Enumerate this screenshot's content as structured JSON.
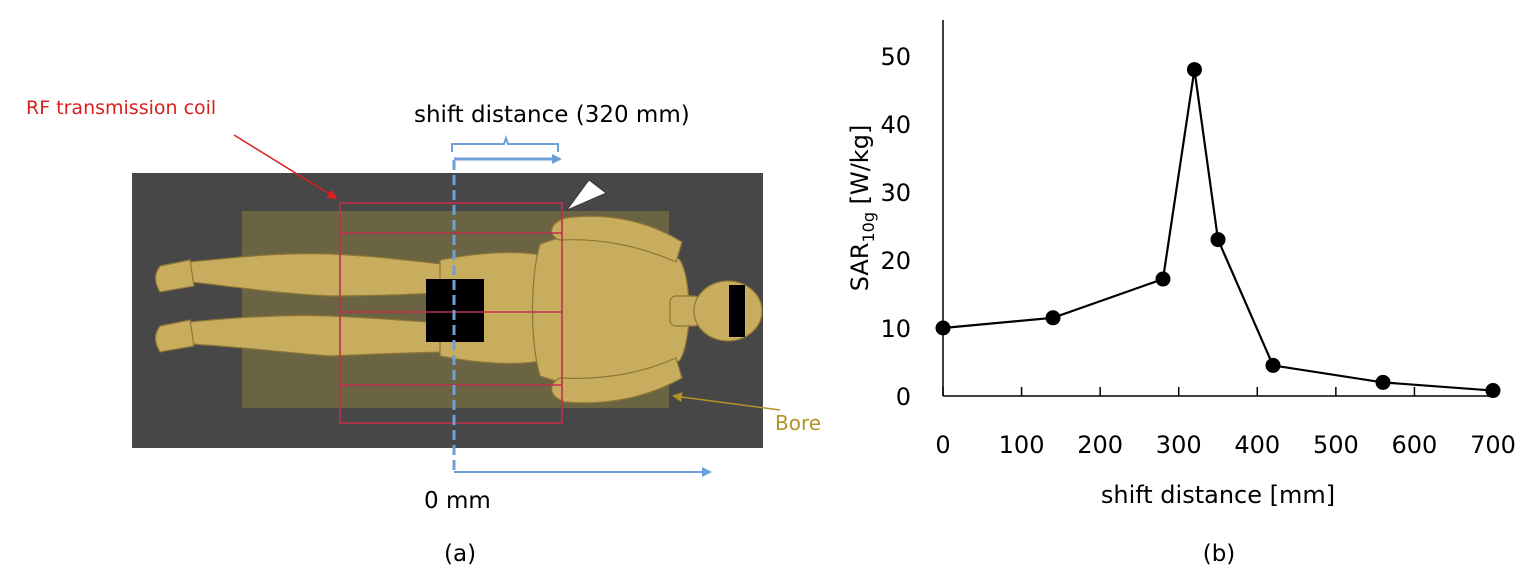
{
  "panel_a": {
    "coil_label": "RF transmission coil",
    "shift_label": "shift distance (320 mm)",
    "bore_label": "Bore",
    "zero_label": "0 mm",
    "caption": "(a)",
    "colors": {
      "background": "#474747",
      "bore": "#6e6642",
      "body": "#c9ad5e",
      "coil": "#c0304e",
      "arrow": "#6f9fd8",
      "coil_text": "#d91f1f",
      "bore_text": "#b39226"
    }
  },
  "panel_b": {
    "caption": "(b)"
  },
  "chart_data": {
    "type": "line",
    "x": [
      0,
      140,
      280,
      320,
      350,
      420,
      560,
      700
    ],
    "y": [
      10,
      11.5,
      17.2,
      48,
      23,
      4.5,
      2,
      0.8
    ],
    "xlabel": "shift distance [mm]",
    "ylabel_main": "SAR",
    "ylabel_sub": "10g",
    "ylabel_unit": " [W/kg]",
    "xlim": [
      0,
      700
    ],
    "ylim": [
      0,
      50
    ],
    "xticks": [
      "0",
      "100",
      "200",
      "300",
      "400",
      "500",
      "600",
      "700"
    ],
    "yticks": [
      "0",
      "10",
      "20",
      "30",
      "40",
      "50"
    ],
    "grid": false,
    "marker": "circle",
    "color": "#000000"
  }
}
